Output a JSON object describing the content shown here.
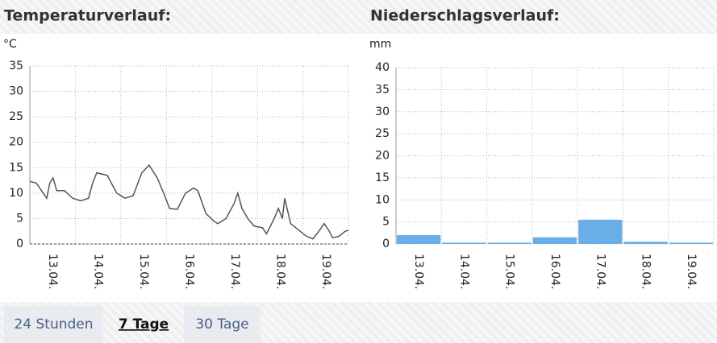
{
  "chart_data": [
    {
      "type": "line",
      "title": "Temperaturverlauf:",
      "y_label": "°C",
      "categories": [
        "13.04.",
        "14.04.",
        "15.04.",
        "16.04.",
        "17.04.",
        "18.04.",
        "19.04."
      ],
      "x": [
        0,
        0.14,
        0.37,
        0.44,
        0.51,
        0.59,
        0.76,
        0.94,
        1.12,
        1.29,
        1.38,
        1.47,
        1.7,
        1.91,
        2.09,
        2.27,
        2.46,
        2.62,
        2.8,
        2.94,
        3.07,
        3.24,
        3.42,
        3.6,
        3.69,
        3.87,
        4.04,
        4.13,
        4.31,
        4.49,
        4.57,
        4.66,
        4.79,
        4.93,
        5.11,
        5.2,
        5.37,
        5.46,
        5.55,
        5.6,
        5.73,
        5.87,
        6.08,
        6.22,
        6.35,
        6.47,
        6.58,
        6.65,
        6.79,
        6.93,
        7
      ],
      "values": [
        12.3,
        12,
        9,
        12,
        13,
        10.5,
        10.5,
        9,
        8.5,
        9,
        12,
        14,
        13.5,
        10,
        9,
        9.5,
        14,
        15.5,
        13,
        10,
        7,
        6.8,
        10,
        11,
        10.5,
        6,
        4.5,
        4,
        5,
        8,
        10,
        7,
        5,
        3.5,
        3.2,
        2,
        5,
        7,
        5,
        9,
        4,
        3,
        1.5,
        1,
        2.5,
        4,
        2.5,
        1.2,
        1.5,
        2.5,
        2.7
      ],
      "color": "#555555",
      "xlim": [
        0,
        7
      ],
      "ylim": [
        0,
        35
      ],
      "yticks": [
        0,
        5,
        10,
        15,
        20,
        25,
        30,
        35
      ],
      "grid": true
    },
    {
      "type": "bar",
      "title": "Niederschlagsverlauf:",
      "y_label": "mm",
      "categories": [
        "13.04.",
        "14.04.",
        "15.04.",
        "16.04.",
        "17.04.",
        "18.04.",
        "19.04."
      ],
      "values": [
        2,
        0.3,
        0.3,
        1.5,
        5.5,
        0.5,
        0.3
      ],
      "color": "#6aaee8",
      "ylim": [
        0,
        40
      ],
      "yticks": [
        0,
        5,
        10,
        15,
        20,
        25,
        30,
        35,
        40
      ],
      "grid": true
    }
  ],
  "tabs": [
    "24 Stunden",
    "7 Tage",
    "30 Tage"
  ],
  "active_tab": 1
}
